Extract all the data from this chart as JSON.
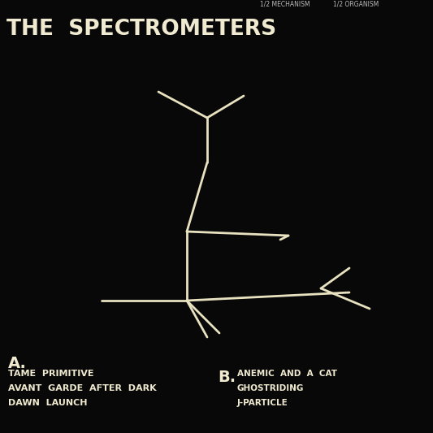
{
  "bg_color": "#080808",
  "title": "THE  SPECTROMETERS",
  "subtitle_left": "1/2 MECHANISM",
  "subtitle_right": "1/2 ORGANISM",
  "title_color": "#f0ead0",
  "subtitle_color": "#bbbbbb",
  "a_label": "A.",
  "b_label": "B.",
  "a_tracks": [
    "TAME  PRIMITIVE",
    "AVANT  GARDE  AFTER  DARK",
    "DAWN  LAUNCH"
  ],
  "b_tracks": [
    "ANEMIC  AND  A  CAT",
    "GHOSTRIDING",
    "J-PARTICLE"
  ],
  "tree_color": "#e8e2c0",
  "tree_lw": 2.0,
  "tree_segments": [
    [
      [
        0.34,
        0.53
      ],
      [
        0.34,
        0.7
      ]
    ],
    [
      [
        0.34,
        0.7
      ],
      [
        0.44,
        0.83
      ]
    ],
    [
      [
        0.34,
        0.7
      ],
      [
        0.26,
        0.82
      ]
    ],
    [
      [
        0.34,
        0.53
      ],
      [
        0.34,
        0.4
      ]
    ],
    [
      [
        0.34,
        0.4
      ],
      [
        0.26,
        0.48
      ]
    ],
    [
      [
        0.26,
        0.48
      ],
      [
        0.37,
        0.45
      ]
    ],
    [
      [
        0.34,
        0.35
      ],
      [
        0.34,
        0.18
      ]
    ],
    [
      [
        0.34,
        0.18
      ],
      [
        0.2,
        0.3
      ]
    ],
    [
      [
        0.34,
        0.18
      ],
      [
        0.45,
        0.3
      ]
    ],
    [
      [
        0.34,
        0.35
      ],
      [
        0.14,
        0.3
      ]
    ],
    [
      [
        0.34,
        0.35
      ],
      [
        0.3,
        0.22
      ]
    ],
    [
      [
        0.34,
        0.35
      ],
      [
        0.7,
        0.35
      ]
    ],
    [
      [
        0.7,
        0.35
      ],
      [
        0.8,
        0.3
      ]
    ],
    [
      [
        0.7,
        0.35
      ],
      [
        0.78,
        0.42
      ]
    ],
    [
      [
        0.34,
        0.35
      ],
      [
        0.26,
        0.22
      ]
    ]
  ]
}
